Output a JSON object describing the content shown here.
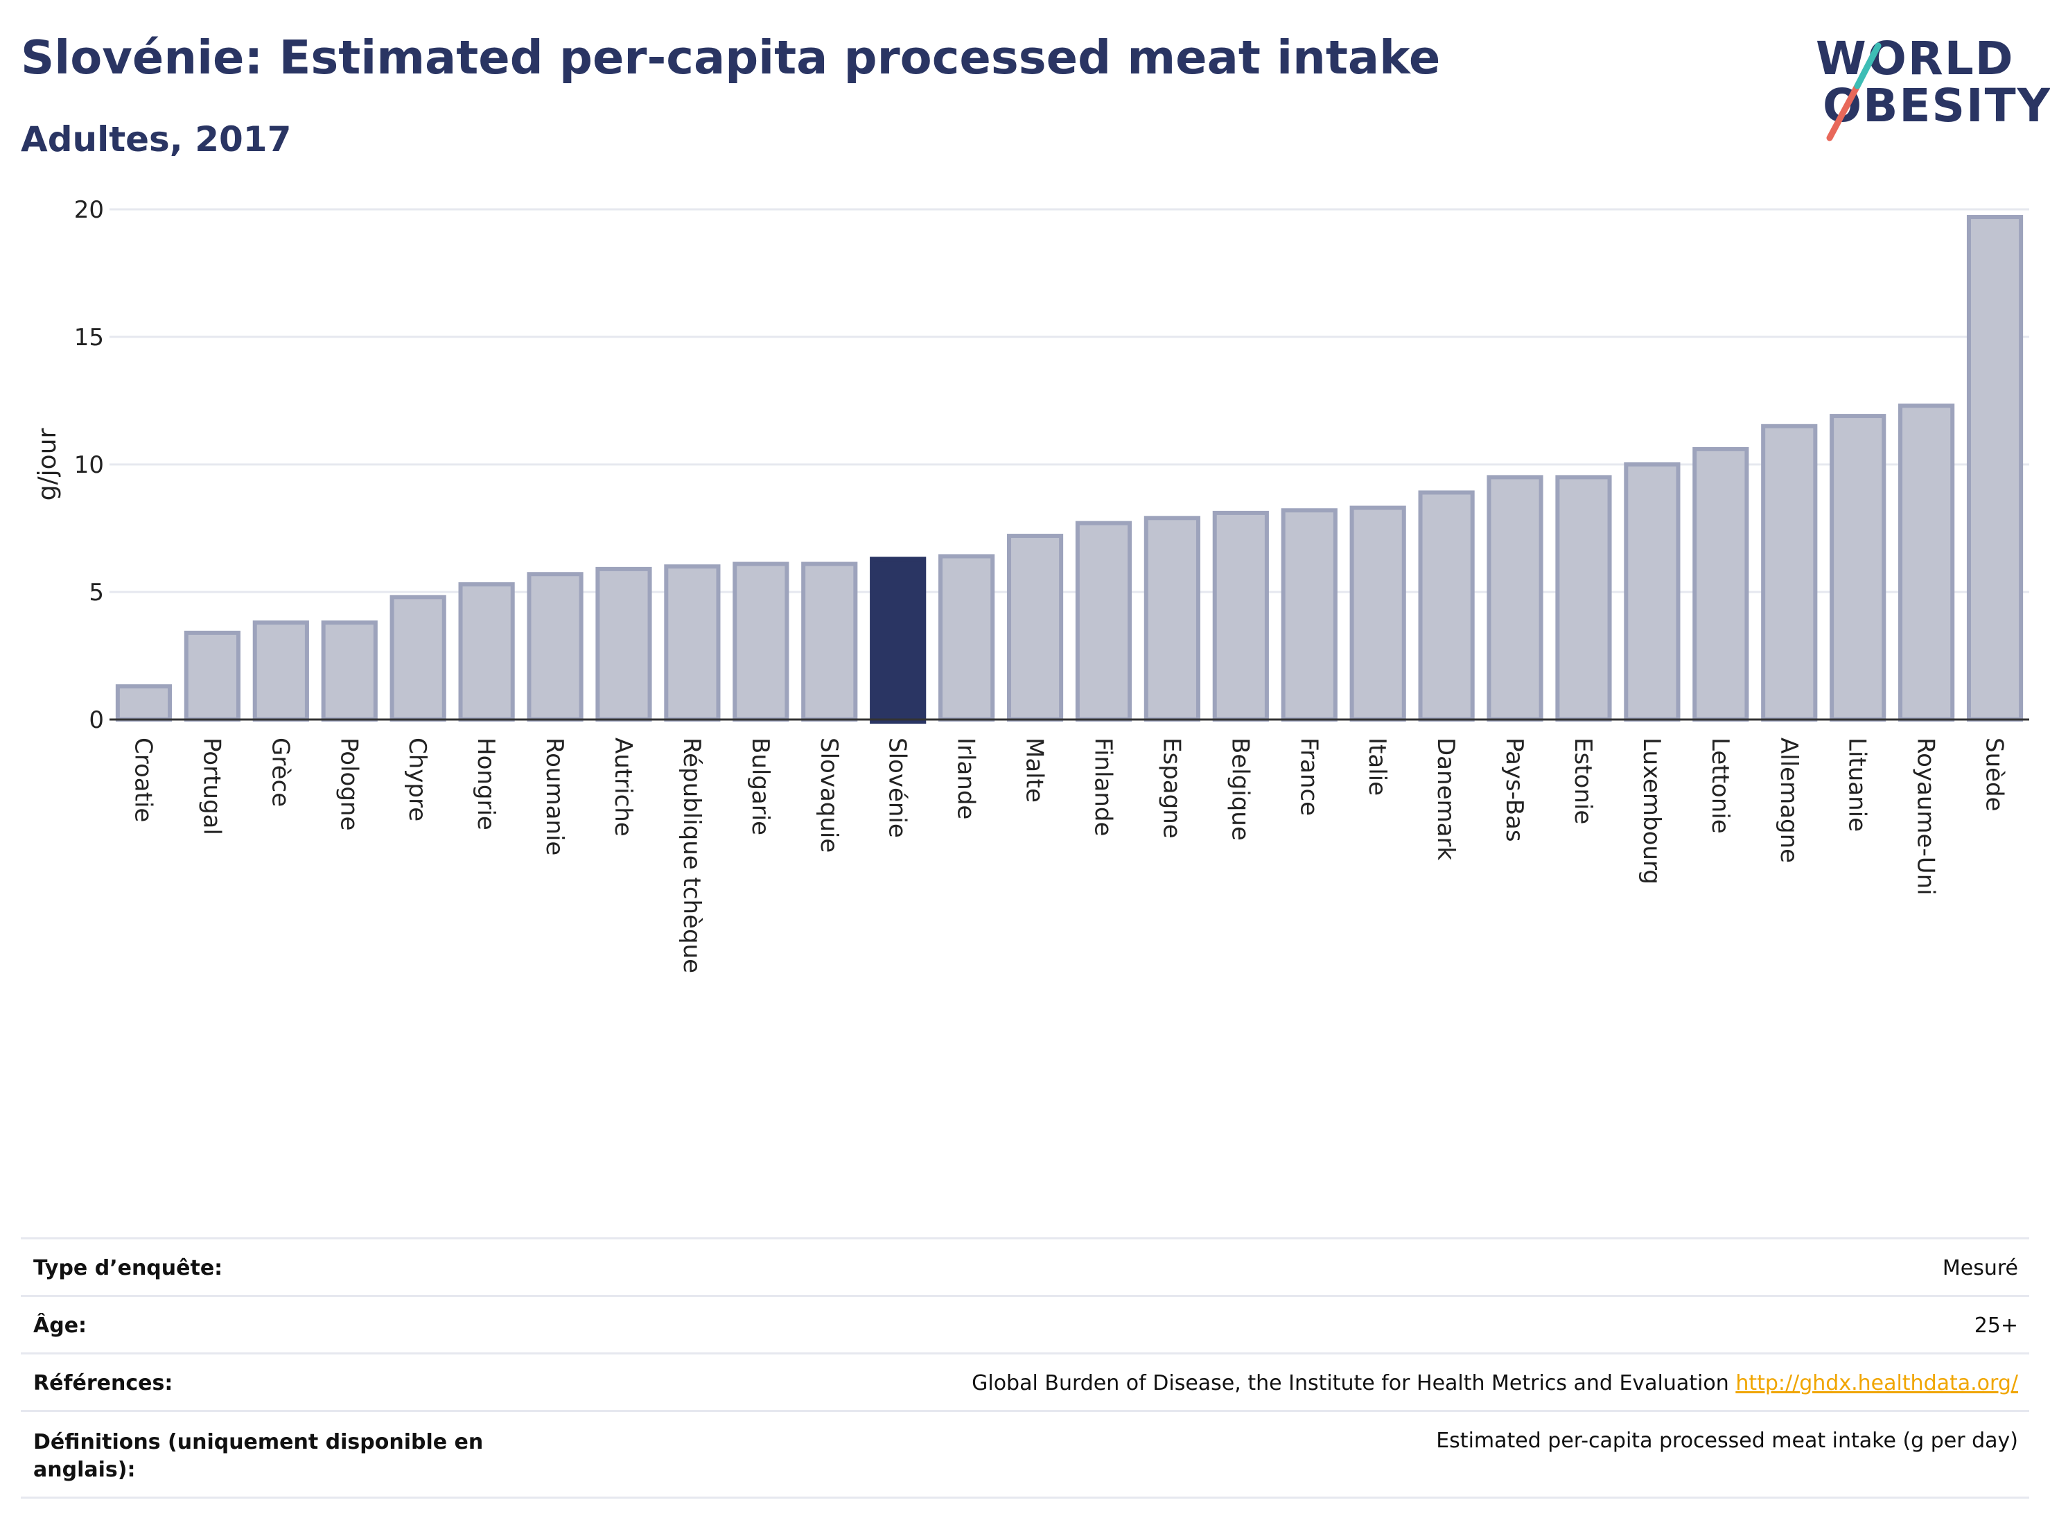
{
  "header": {
    "title": "Slovénie: Estimated per-capita processed meat intake",
    "subtitle": "Adultes, 2017"
  },
  "logo": {
    "line1": "WORLD",
    "line2": "OBESITY"
  },
  "colors": {
    "highlight": "#2a3563",
    "bar_fill": "#c0c3d0",
    "bar_stroke": "#9da3bc",
    "title": "#2a3563",
    "link": "#f0a500",
    "logo_teal": "#3dbdb5",
    "logo_red": "#e8685a"
  },
  "chart_data": {
    "type": "bar",
    "ylabel": "g/jour",
    "ylim": [
      0,
      20
    ],
    "yticks": [
      0,
      5,
      10,
      15,
      20
    ],
    "highlight": "Slovénie",
    "categories": [
      "Croatie",
      "Portugal",
      "Grèce",
      "Pologne",
      "Chypre",
      "Hongrie",
      "Roumanie",
      "Autriche",
      "République tchèque",
      "Bulgarie",
      "Slovaquie",
      "Slovénie",
      "Irlande",
      "Malte",
      "Finlande",
      "Espagne",
      "Belgique",
      "France",
      "Italie",
      "Danemark",
      "Pays-Bas",
      "Estonie",
      "Luxembourg",
      "Lettonie",
      "Allemagne",
      "Lituanie",
      "Royaume-Uni",
      "Suède"
    ],
    "values": [
      1.3,
      3.4,
      3.8,
      3.8,
      4.8,
      5.3,
      5.7,
      5.9,
      6.0,
      6.1,
      6.1,
      6.3,
      6.4,
      7.2,
      7.7,
      7.9,
      8.1,
      8.2,
      8.3,
      8.9,
      9.5,
      9.5,
      10.0,
      10.6,
      11.5,
      11.9,
      12.3,
      19.7
    ],
    "grid": true
  },
  "info": {
    "rows": [
      {
        "label": "Type d’enquête:",
        "value": "Mesuré"
      },
      {
        "label": "Âge:",
        "value": "25+"
      },
      {
        "label": "Références:",
        "value": "Global Burden of Disease, the Institute for Health Metrics and Evaluation",
        "link": "http://ghdx.healthdata.org/"
      },
      {
        "label": "Définitions (uniquement disponible en anglais):",
        "value": "Estimated per-capita processed meat intake (g per day)"
      }
    ]
  }
}
